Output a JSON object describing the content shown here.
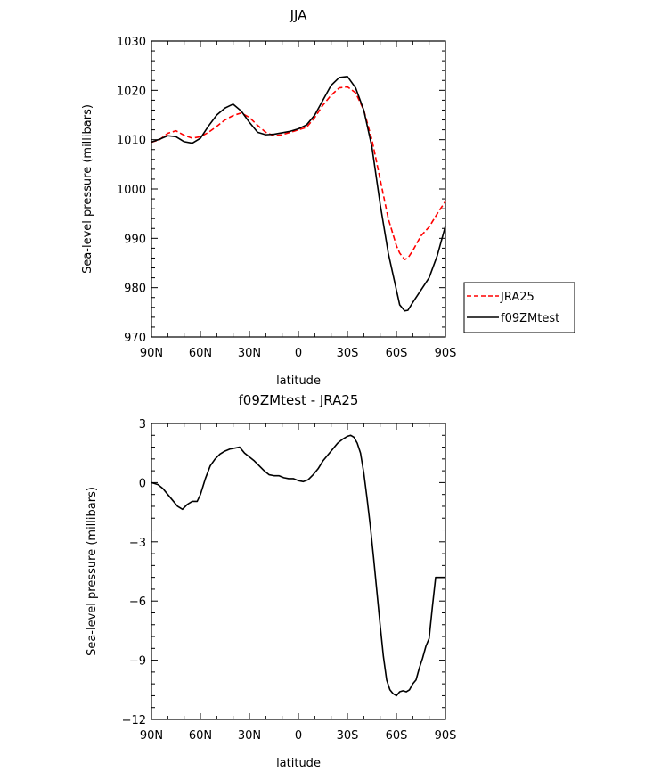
{
  "chart_data": [
    {
      "type": "line",
      "title": "JJA",
      "xlabel": "latitude",
      "ylabel": "Sea-level pressure (millibars)",
      "xlim": [
        90,
        -90
      ],
      "ylim": [
        970,
        1030
      ],
      "xticks": [
        90,
        60,
        30,
        0,
        -30,
        -60,
        -90
      ],
      "xtick_labels": [
        "90N",
        "60N",
        "30N",
        "0",
        "30S",
        "60S",
        "90S"
      ],
      "yticks": [
        970,
        980,
        990,
        1000,
        1010,
        1020,
        1030
      ],
      "ytick_labels": [
        "970",
        "980",
        "990",
        "1000",
        "1010",
        "1020",
        "1030"
      ],
      "legend_position": "right",
      "grid": false,
      "series": [
        {
          "name": "JRA25",
          "color": "#ff0000",
          "dash": "dashed",
          "x": [
            90,
            85,
            80,
            75,
            70,
            65,
            60,
            55,
            50,
            45,
            40,
            35,
            30,
            25,
            20,
            15,
            10,
            5,
            0,
            -5,
            -10,
            -15,
            -20,
            -25,
            -30,
            -35,
            -40,
            -45,
            -50,
            -55,
            -60,
            -62,
            -65,
            -67,
            -70,
            -75,
            -80,
            -85,
            -90
          ],
          "y": [
            1009.5,
            1010.0,
            1011.3,
            1011.8,
            1010.9,
            1010.3,
            1010.6,
            1011.5,
            1012.7,
            1014.0,
            1014.9,
            1015.4,
            1014.5,
            1012.9,
            1011.5,
            1010.8,
            1011.0,
            1011.5,
            1012.0,
            1012.5,
            1014.5,
            1017.0,
            1019.0,
            1020.5,
            1020.7,
            1019.5,
            1016.0,
            1010.0,
            1002.0,
            994.0,
            988.5,
            987.0,
            985.7,
            986.0,
            987.5,
            990.5,
            992.3,
            995.0,
            997.5
          ]
        },
        {
          "name": "f09ZMtest",
          "color": "#000000",
          "dash": "solid",
          "x": [
            90,
            85,
            80,
            75,
            70,
            65,
            60,
            55,
            50,
            45,
            40,
            35,
            30,
            25,
            20,
            15,
            10,
            5,
            0,
            -5,
            -10,
            -15,
            -20,
            -25,
            -30,
            -35,
            -40,
            -45,
            -50,
            -55,
            -60,
            -62,
            -65,
            -67,
            -70,
            -75,
            -80,
            -85,
            -90
          ],
          "y": [
            1009.5,
            1010.1,
            1010.8,
            1010.6,
            1009.6,
            1009.3,
            1010.3,
            1012.8,
            1015.0,
            1016.4,
            1017.2,
            1015.8,
            1013.5,
            1011.5,
            1011.0,
            1011.1,
            1011.4,
            1011.7,
            1012.2,
            1013.0,
            1015.0,
            1018.0,
            1021.0,
            1022.6,
            1022.8,
            1020.5,
            1016.0,
            1008.5,
            997.0,
            987.0,
            979.5,
            976.5,
            975.3,
            975.4,
            977.0,
            979.5,
            982.0,
            986.5,
            992.5
          ]
        }
      ]
    },
    {
      "type": "line",
      "title": "f09ZMtest - JRA25",
      "xlabel": "latitude",
      "ylabel": "Sea-level pressure (millibars)",
      "xlim": [
        90,
        -90
      ],
      "ylim": [
        -12,
        3
      ],
      "xticks": [
        90,
        60,
        30,
        0,
        -30,
        -60,
        -90
      ],
      "xtick_labels": [
        "90N",
        "60N",
        "30N",
        "0",
        "30S",
        "60S",
        "90S"
      ],
      "yticks": [
        -12,
        -9,
        -6,
        -3,
        0,
        3
      ],
      "ytick_labels": [
        "−12",
        "−9",
        "−6",
        "−3",
        "0",
        "3"
      ],
      "grid": false,
      "series": [
        {
          "color": "#000000",
          "dash": "solid",
          "x": [
            90,
            86,
            83,
            80,
            77,
            74,
            71,
            68,
            65,
            62,
            60,
            57,
            54,
            51,
            48,
            45,
            42,
            39,
            36,
            33,
            30,
            27,
            24,
            21,
            18,
            15,
            12,
            9,
            6,
            3,
            0,
            -3,
            -6,
            -9,
            -12,
            -15,
            -18,
            -21,
            -24,
            -27,
            -30,
            -32,
            -34,
            -36,
            -38,
            -40,
            -42,
            -44,
            -46,
            -48,
            -50,
            -52,
            -54,
            -56,
            -58,
            -60,
            -62,
            -64,
            -66,
            -68,
            -70,
            -72,
            -74,
            -76,
            -78,
            -80,
            -82,
            -84,
            -86,
            -88,
            -90
          ],
          "y": [
            0.0,
            -0.1,
            -0.3,
            -0.6,
            -0.9,
            -1.2,
            -1.35,
            -1.1,
            -0.95,
            -0.95,
            -0.6,
            0.2,
            0.85,
            1.2,
            1.45,
            1.6,
            1.7,
            1.75,
            1.8,
            1.5,
            1.3,
            1.1,
            0.85,
            0.6,
            0.4,
            0.35,
            0.35,
            0.25,
            0.2,
            0.2,
            0.1,
            0.05,
            0.15,
            0.4,
            0.7,
            1.1,
            1.4,
            1.7,
            2.0,
            2.2,
            2.35,
            2.4,
            2.3,
            2.0,
            1.5,
            0.5,
            -0.8,
            -2.2,
            -3.8,
            -5.5,
            -7.2,
            -8.8,
            -10.0,
            -10.5,
            -10.7,
            -10.8,
            -10.6,
            -10.55,
            -10.6,
            -10.5,
            -10.2,
            -10.0,
            -9.4,
            -8.9,
            -8.3,
            -7.9,
            -6.3,
            -4.8,
            -4.8,
            -4.8,
            -4.8
          ]
        }
      ]
    }
  ]
}
